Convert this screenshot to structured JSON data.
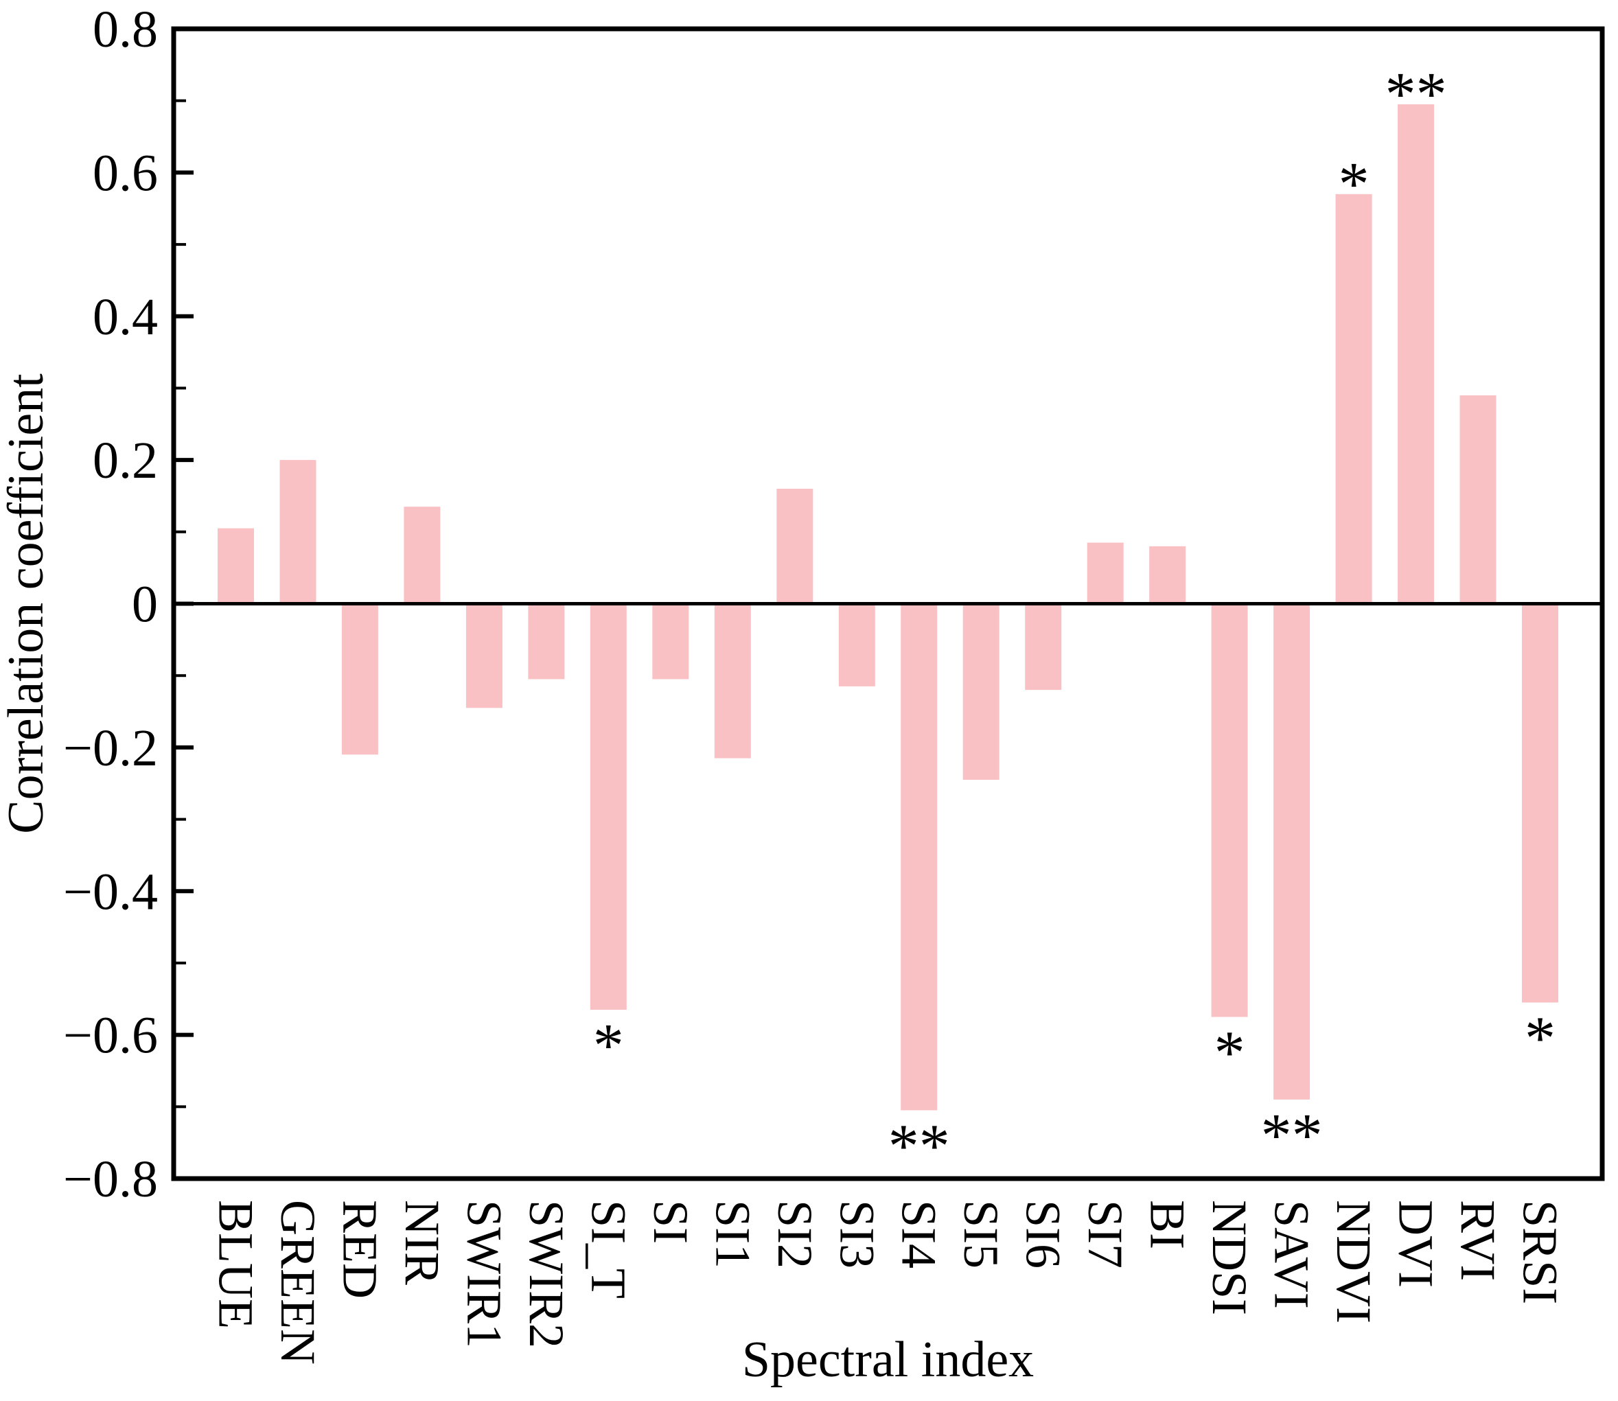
{
  "chart_data": {
    "type": "bar",
    "title": "",
    "xlabel": "Spectral index",
    "ylabel": "Correlation coefficient",
    "ylim": [
      -0.8,
      0.8
    ],
    "yticks": [
      0.8,
      0.6,
      0.4,
      0.2,
      0,
      -0.2,
      -0.4,
      -0.6,
      -0.8
    ],
    "ytick_labels": [
      "0.8",
      "0.6",
      "0.4",
      "0.2",
      "0",
      "−0.2",
      "−0.4",
      "−0.6",
      "−0.8"
    ],
    "ytick_minor_values": [
      0.7,
      0.5,
      0.3,
      0.1,
      -0.1,
      -0.3,
      -0.5,
      -0.7
    ],
    "grid": false,
    "legend": "none",
    "bar_color": "#fac1c5",
    "axis_color": "#000000",
    "categories": [
      "BLUE",
      "GREEN",
      "RED",
      "NIR",
      "SWIR1",
      "SWIR2",
      "SI_T",
      "SI",
      "SI1",
      "SI2",
      "SI3",
      "SI4",
      "SI5",
      "SI6",
      "SI7",
      "BI",
      "NDSI",
      "SAVI",
      "NDVI",
      "DVI",
      "RVI",
      "SRSI"
    ],
    "values": [
      0.105,
      0.2,
      -0.21,
      0.135,
      -0.145,
      -0.105,
      -0.565,
      -0.105,
      -0.215,
      0.16,
      -0.115,
      -0.705,
      -0.245,
      -0.12,
      0.085,
      0.08,
      -0.575,
      -0.69,
      0.57,
      0.695,
      0.29,
      -0.555
    ],
    "significance": [
      "",
      "",
      "",
      "",
      "",
      "",
      "*",
      "",
      "",
      "",
      "",
      "**",
      "",
      "",
      "",
      "",
      "*",
      "**",
      "*",
      "**",
      "",
      "*"
    ]
  }
}
